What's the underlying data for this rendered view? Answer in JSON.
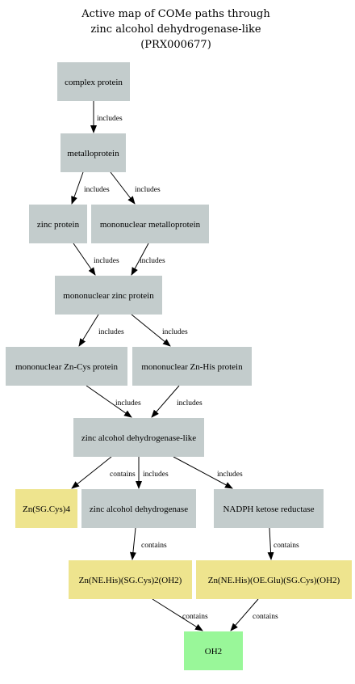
{
  "title": {
    "lines": [
      "Active map of COMe paths through",
      "zinc alcohol dehydrogenase-like",
      "(PRX000677)"
    ]
  },
  "colors": {
    "protein": "#c3cccc",
    "prosthetic": "#eee48e",
    "ligand": "#99f799",
    "edge": "#000000"
  },
  "nodes": [
    {
      "id": "complex_protein",
      "label": "complex protein",
      "kind": "protein"
    },
    {
      "id": "metalloprotein",
      "label": "metalloprotein",
      "kind": "protein"
    },
    {
      "id": "zinc_protein",
      "label": "zinc protein",
      "kind": "protein"
    },
    {
      "id": "mononuclear_metalloprotein",
      "label": "mononuclear metalloprotein",
      "kind": "protein"
    },
    {
      "id": "mononuclear_zinc_protein",
      "label": "mononuclear zinc protein",
      "kind": "protein"
    },
    {
      "id": "mononuclear_zn_cys_protein",
      "label": "mononuclear Zn-Cys protein",
      "kind": "protein"
    },
    {
      "id": "mononuclear_zn_his_protein",
      "label": "mononuclear Zn-His protein",
      "kind": "protein"
    },
    {
      "id": "zinc_alcohol_dehydrogenase_like",
      "label": "zinc alcohol dehydrogenase-like",
      "kind": "protein"
    },
    {
      "id": "zn_sg_cys_4",
      "label": "Zn(SG.Cys)4",
      "kind": "prosthetic"
    },
    {
      "id": "zinc_alcohol_dehydrogenase",
      "label": "zinc alcohol dehydrogenase",
      "kind": "protein"
    },
    {
      "id": "nadph_ketose_reductase",
      "label": "NADPH ketose reductase",
      "kind": "protein"
    },
    {
      "id": "zn_ne_his_sg_cys_2_oh2",
      "label": "Zn(NE.His)(SG.Cys)2(OH2)",
      "kind": "prosthetic"
    },
    {
      "id": "zn_ne_his_oe_glu_sg_cys_oh2",
      "label": "Zn(NE.His)(OE.Glu)(SG.Cys)(OH2)",
      "kind": "prosthetic"
    },
    {
      "id": "oh2",
      "label": "OH2",
      "kind": "ligand"
    }
  ],
  "edges": [
    {
      "from": "complex_protein",
      "to": "metalloprotein",
      "label": "includes"
    },
    {
      "from": "metalloprotein",
      "to": "zinc_protein",
      "label": "includes"
    },
    {
      "from": "metalloprotein",
      "to": "mononuclear_metalloprotein",
      "label": "includes"
    },
    {
      "from": "zinc_protein",
      "to": "mononuclear_zinc_protein",
      "label": "includes"
    },
    {
      "from": "mononuclear_metalloprotein",
      "to": "mononuclear_zinc_protein",
      "label": "includes"
    },
    {
      "from": "mononuclear_zinc_protein",
      "to": "mononuclear_zn_cys_protein",
      "label": "includes"
    },
    {
      "from": "mononuclear_zinc_protein",
      "to": "mononuclear_zn_his_protein",
      "label": "includes"
    },
    {
      "from": "mononuclear_zn_cys_protein",
      "to": "zinc_alcohol_dehydrogenase_like",
      "label": "includes"
    },
    {
      "from": "mononuclear_zn_his_protein",
      "to": "zinc_alcohol_dehydrogenase_like",
      "label": "includes"
    },
    {
      "from": "zinc_alcohol_dehydrogenase_like",
      "to": "zn_sg_cys_4",
      "label": "contains"
    },
    {
      "from": "zinc_alcohol_dehydrogenase_like",
      "to": "zinc_alcohol_dehydrogenase",
      "label": "includes"
    },
    {
      "from": "zinc_alcohol_dehydrogenase_like",
      "to": "nadph_ketose_reductase",
      "label": "includes"
    },
    {
      "from": "zinc_alcohol_dehydrogenase",
      "to": "zn_ne_his_sg_cys_2_oh2",
      "label": "contains"
    },
    {
      "from": "nadph_ketose_reductase",
      "to": "zn_ne_his_oe_glu_sg_cys_oh2",
      "label": "contains"
    },
    {
      "from": "zn_ne_his_sg_cys_2_oh2",
      "to": "oh2",
      "label": "contains"
    },
    {
      "from": "zn_ne_his_oe_glu_sg_cys_oh2",
      "to": "oh2",
      "label": "contains"
    }
  ]
}
